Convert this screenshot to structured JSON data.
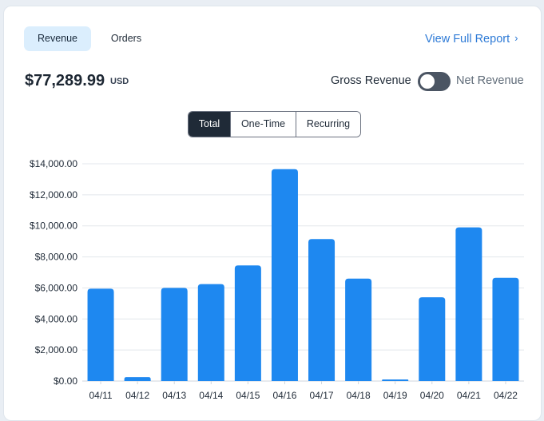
{
  "tabs": {
    "revenue": "Revenue",
    "orders": "Orders"
  },
  "view_report": {
    "label": "View Full Report",
    "chevron": "›"
  },
  "summary": {
    "amount": "$77,289.99",
    "currency": "USD"
  },
  "toggle": {
    "left_label": "Gross Revenue",
    "right_label": "Net Revenue",
    "checked": false
  },
  "segments": {
    "total": "Total",
    "one_time": "One-Time",
    "recurring": "Recurring",
    "selected": "Total"
  },
  "colors": {
    "bar": "#1e88f0",
    "accent": "#2d7ad6",
    "grid": "#e3e7ec"
  },
  "chart_data": {
    "type": "bar",
    "categories": [
      "04/11",
      "04/12",
      "04/13",
      "04/14",
      "04/15",
      "04/16",
      "04/17",
      "04/18",
      "04/19",
      "04/20",
      "04/21",
      "04/22"
    ],
    "values": [
      5950,
      250,
      6000,
      6250,
      7450,
      13650,
      9150,
      6600,
      100,
      5400,
      9900,
      6650
    ],
    "ylim": [
      0,
      14000
    ],
    "yticks": [
      0,
      2000,
      4000,
      6000,
      8000,
      10000,
      12000,
      14000
    ],
    "ytick_labels": [
      "$0.00",
      "$2,000.00",
      "$4,000.00",
      "$6,000.00",
      "$8,000.00",
      "$10,000.00",
      "$12,000.00",
      "$14,000.00"
    ],
    "grid": true
  }
}
